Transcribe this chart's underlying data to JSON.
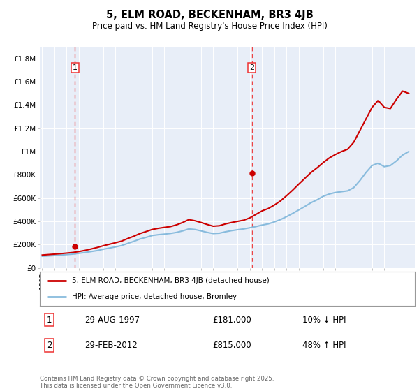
{
  "title": "5, ELM ROAD, BECKENHAM, BR3 4JB",
  "subtitle": "Price paid vs. HM Land Registry's House Price Index (HPI)",
  "ylim": [
    0,
    1900000
  ],
  "yticks": [
    0,
    200000,
    400000,
    600000,
    800000,
    1000000,
    1200000,
    1400000,
    1600000,
    1800000
  ],
  "ytick_labels": [
    "£0",
    "£200K",
    "£400K",
    "£600K",
    "£800K",
    "£1M",
    "£1.2M",
    "£1.4M",
    "£1.6M",
    "£1.8M"
  ],
  "plot_bg_color": "#e8eef8",
  "sale1_date": 1997.66,
  "sale1_price": 181000,
  "sale2_date": 2012.17,
  "sale2_price": 815000,
  "marker_color": "#cc0000",
  "vline_color": "#ee3333",
  "hpi_color": "#88bbdd",
  "price_color": "#cc0000",
  "legend_label_price": "5, ELM ROAD, BECKENHAM, BR3 4JB (detached house)",
  "legend_label_hpi": "HPI: Average price, detached house, Bromley",
  "note1_date": "29-AUG-1997",
  "note1_price": "£181,000",
  "note1_hpi": "10% ↓ HPI",
  "note2_date": "29-FEB-2012",
  "note2_price": "£815,000",
  "note2_hpi": "48% ↑ HPI",
  "footer": "Contains HM Land Registry data © Crown copyright and database right 2025.\nThis data is licensed under the Open Government Licence v3.0.",
  "hpi_years": [
    1995,
    1995.5,
    1996,
    1996.5,
    1997,
    1997.5,
    1998,
    1998.5,
    1999,
    1999.5,
    2000,
    2000.5,
    2001,
    2001.5,
    2002,
    2002.5,
    2003,
    2003.5,
    2004,
    2004.5,
    2005,
    2005.5,
    2006,
    2006.5,
    2007,
    2007.5,
    2008,
    2008.5,
    2009,
    2009.5,
    2010,
    2010.5,
    2011,
    2011.5,
    2012,
    2012.5,
    2013,
    2013.5,
    2014,
    2014.5,
    2015,
    2015.5,
    2016,
    2016.5,
    2017,
    2017.5,
    2018,
    2018.5,
    2019,
    2019.5,
    2020,
    2020.5,
    2021,
    2021.5,
    2022,
    2022.5,
    2023,
    2023.5,
    2024,
    2024.5,
    2025
  ],
  "hpi_vals": [
    100000,
    103000,
    106000,
    110000,
    114000,
    118000,
    125000,
    132000,
    140000,
    148000,
    160000,
    170000,
    180000,
    192000,
    210000,
    228000,
    248000,
    262000,
    278000,
    285000,
    290000,
    296000,
    305000,
    318000,
    335000,
    330000,
    318000,
    305000,
    295000,
    298000,
    310000,
    320000,
    328000,
    335000,
    345000,
    355000,
    368000,
    378000,
    395000,
    415000,
    440000,
    468000,
    498000,
    528000,
    560000,
    585000,
    615000,
    635000,
    648000,
    655000,
    662000,
    690000,
    750000,
    820000,
    880000,
    900000,
    870000,
    880000,
    920000,
    970000,
    1000000
  ],
  "price_years": [
    1995,
    1995.5,
    1996,
    1996.5,
    1997,
    1997.5,
    1998,
    1998.5,
    1999,
    1999.5,
    2000,
    2000.5,
    2001,
    2001.5,
    2002,
    2002.5,
    2003,
    2003.5,
    2004,
    2004.5,
    2005,
    2005.5,
    2006,
    2006.5,
    2007,
    2007.5,
    2008,
    2008.5,
    2009,
    2009.5,
    2010,
    2010.5,
    2011,
    2011.5,
    2012,
    2012.5,
    2013,
    2013.5,
    2014,
    2014.5,
    2015,
    2015.5,
    2016,
    2016.5,
    2017,
    2017.5,
    2018,
    2018.5,
    2019,
    2019.5,
    2020,
    2020.5,
    2021,
    2021.5,
    2022,
    2022.5,
    2023,
    2023.5,
    2024,
    2024.5,
    2025
  ],
  "price_vals": [
    110000,
    114000,
    118000,
    122000,
    127000,
    132000,
    140000,
    150000,
    162000,
    175000,
    190000,
    203000,
    216000,
    230000,
    252000,
    272000,
    295000,
    312000,
    330000,
    340000,
    348000,
    355000,
    370000,
    390000,
    415000,
    405000,
    390000,
    373000,
    358000,
    362000,
    378000,
    390000,
    400000,
    410000,
    430000,
    460000,
    490000,
    510000,
    540000,
    575000,
    620000,
    668000,
    720000,
    770000,
    820000,
    860000,
    905000,
    945000,
    975000,
    1000000,
    1020000,
    1080000,
    1180000,
    1280000,
    1380000,
    1440000,
    1380000,
    1370000,
    1450000,
    1520000,
    1500000
  ]
}
